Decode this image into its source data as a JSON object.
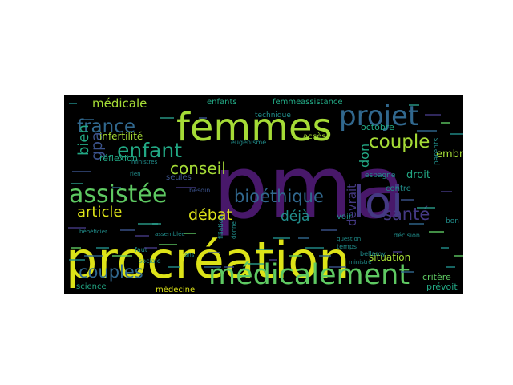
{
  "palette": {
    "yellow": "#dde318",
    "lime": "#a5db36",
    "green": "#5ec962",
    "teal": "#22a884",
    "sea": "#2a9d8a",
    "cyan": "#218e8c",
    "blue": "#31688e",
    "slate": "#3b528b",
    "indigo": "#443983",
    "purple": "#48186a",
    "deep": "#440154"
  },
  "words": [
    {
      "text": "procréation",
      "color": "yellow"
    },
    {
      "text": "pma",
      "color": "purple"
    },
    {
      "text": "femmes",
      "color": "lime"
    },
    {
      "text": "loi",
      "color": "indigo"
    },
    {
      "text": "projet",
      "color": "blue"
    },
    {
      "text": "médicalement",
      "color": "green"
    },
    {
      "text": "assistée",
      "color": "green"
    },
    {
      "text": "enfant",
      "color": "teal"
    },
    {
      "text": "bioéthique",
      "color": "blue"
    },
    {
      "text": "couple",
      "color": "lime"
    },
    {
      "text": "conseil",
      "color": "lime"
    },
    {
      "text": "couples",
      "color": "blue"
    },
    {
      "text": "santé",
      "color": "indigo"
    },
    {
      "text": "article",
      "color": "yellow"
    },
    {
      "text": "débat",
      "color": "yellow"
    },
    {
      "text": "déjà",
      "color": "cyan"
    },
    {
      "text": "france",
      "color": "blue"
    },
    {
      "text": "médicale",
      "color": "lime"
    },
    {
      "text": "bien",
      "color": "teal"
    },
    {
      "text": "gpa",
      "color": "slate"
    },
    {
      "text": "devrait",
      "color": "indigo"
    },
    {
      "text": "don",
      "color": "teal"
    },
    {
      "text": "embryons",
      "color": "lime"
    },
    {
      "text": "droit",
      "color": "teal"
    },
    {
      "text": "octobre",
      "color": "teal"
    },
    {
      "text": "situation",
      "color": "lime"
    },
    {
      "text": "assistance",
      "color": "teal"
    },
    {
      "text": "femme",
      "color": "teal"
    },
    {
      "text": "enfants",
      "color": "teal"
    },
    {
      "text": "infertilité",
      "color": "lime"
    },
    {
      "text": "réflexion",
      "color": "teal"
    },
    {
      "text": "science",
      "color": "teal"
    },
    {
      "text": "médecine",
      "color": "yellow"
    },
    {
      "text": "critère",
      "color": "green"
    },
    {
      "text": "prévoit",
      "color": "teal"
    },
    {
      "text": "voir",
      "color": "cyan"
    },
    {
      "text": "contre",
      "color": "cyan"
    },
    {
      "text": "espagne",
      "color": "cyan"
    },
    {
      "text": "accès",
      "color": "lime"
    },
    {
      "text": "parents",
      "color": "cyan"
    },
    {
      "text": "bon",
      "color": "cyan"
    },
    {
      "text": "temps",
      "color": "cyan"
    },
    {
      "text": "technique",
      "color": "cyan"
    },
    {
      "text": "eugénisme",
      "color": "cyan"
    },
    {
      "text": "seules",
      "color": "slate"
    },
    {
      "text": "ans",
      "color": "cyan"
    },
    {
      "text": "besoin",
      "color": "slate"
    },
    {
      "text": "sociale",
      "color": "cyan"
    },
    {
      "text": "faut",
      "color": "cyan"
    },
    {
      "text": "bellamy",
      "color": "cyan"
    },
    {
      "text": "décision",
      "color": "cyan"
    },
    {
      "text": "filiation",
      "color": "cyan"
    },
    {
      "text": "donne",
      "color": "cyan"
    },
    {
      "text": "rien",
      "color": "cyan"
    },
    {
      "text": "ministres",
      "color": "cyan"
    },
    {
      "text": "assemblée",
      "color": "cyan"
    },
    {
      "text": "bénéficier",
      "color": "cyan"
    },
    {
      "text": "question",
      "color": "cyan"
    },
    {
      "text": "ministre",
      "color": "cyan"
    }
  ]
}
